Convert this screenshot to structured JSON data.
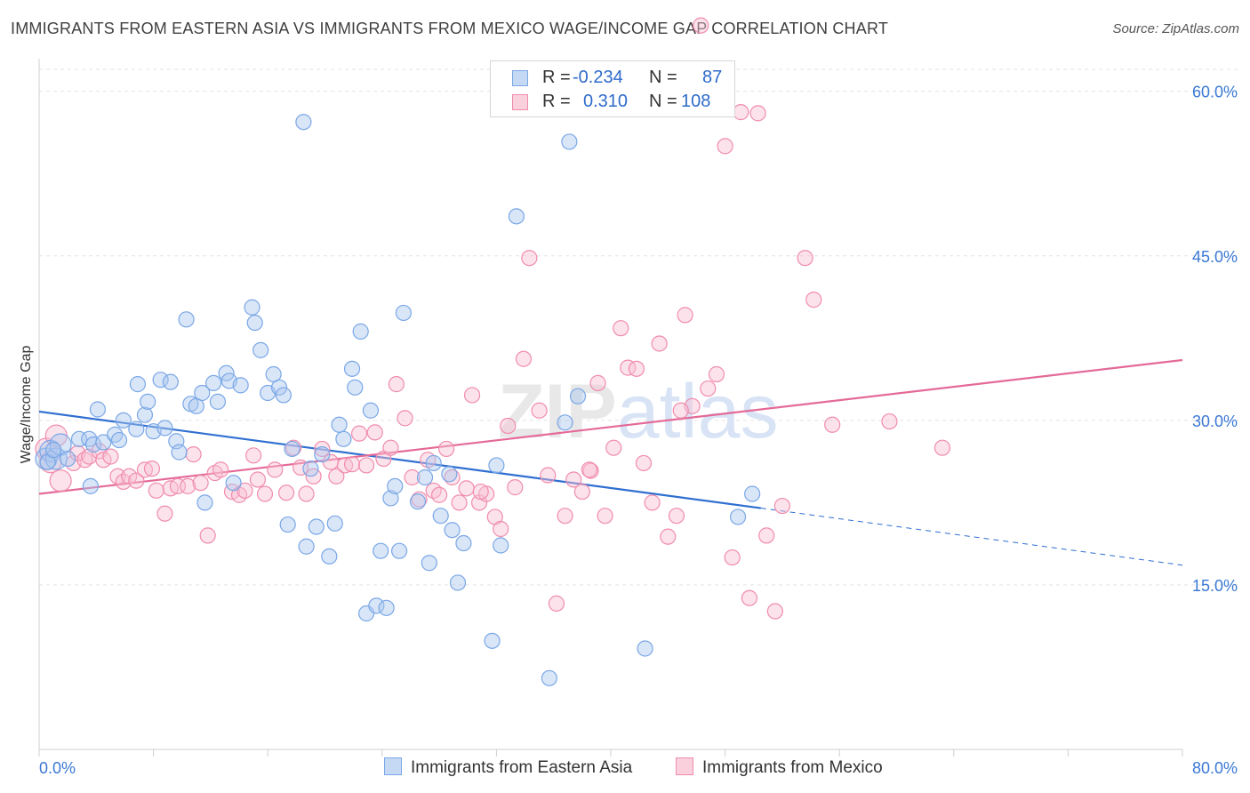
{
  "title": "IMMIGRANTS FROM EASTERN ASIA VS IMMIGRANTS FROM MEXICO WAGE/INCOME GAP CORRELATION CHART",
  "source": "Source: ZipAtlas.com",
  "watermark": "ZIPatlas",
  "legend": {
    "r_label": "R =",
    "n_label": "N =",
    "rows": [
      {
        "name": "Immigrants from Eastern Asia",
        "r": "-0.234",
        "n": "87",
        "color": "#7aa7e6",
        "fill": "#c5d9f5"
      },
      {
        "name": "Immigrants from Mexico",
        "r": "0.310",
        "n": "108",
        "color": "#f08cad",
        "fill": "#fbd0dd"
      }
    ]
  },
  "chart_data": {
    "type": "scatter",
    "title": "IMMIGRANTS FROM EASTERN ASIA VS IMMIGRANTS FROM MEXICO WAGE/INCOME GAP CORRELATION CHART",
    "xlabel": "",
    "ylabel": "Wage/Income Gap",
    "xlim": [
      0,
      80
    ],
    "ylim": [
      0,
      62
    ],
    "x_tick_labels": [
      "0.0%",
      "80.0%"
    ],
    "y_ticks": [
      15,
      30,
      45,
      60
    ],
    "y_tick_labels": [
      "15.0%",
      "30.0%",
      "45.0%",
      "60.0%"
    ],
    "grid": true,
    "legend_position": "top-center",
    "series": [
      {
        "name": "Immigrants from Eastern Asia",
        "color": "#2f6fd0",
        "trend": {
          "x0": 0,
          "y0": 30.8,
          "x1": 50.5,
          "y1": 22.0,
          "dashed_to_x": 80,
          "dashed_to_y": 16.8
        },
        "points": [
          [
            0.5,
            26.5
          ],
          [
            0.8,
            27.2
          ],
          [
            1.2,
            26.5
          ],
          [
            1.5,
            27.8
          ],
          [
            2.8,
            28.3
          ],
          [
            3.5,
            28.3
          ],
          [
            3.8,
            27.8
          ],
          [
            3.6,
            24.0
          ],
          [
            4.1,
            31.0
          ],
          [
            4.5,
            28.0
          ],
          [
            5.3,
            28.7
          ],
          [
            5.6,
            28.2
          ],
          [
            5.9,
            30.0
          ],
          [
            6.8,
            29.2
          ],
          [
            6.9,
            33.3
          ],
          [
            7.4,
            30.5
          ],
          [
            7.6,
            31.7
          ],
          [
            8.0,
            29.0
          ],
          [
            8.5,
            33.7
          ],
          [
            8.8,
            29.3
          ],
          [
            9.2,
            33.5
          ],
          [
            9.6,
            28.1
          ],
          [
            9.8,
            27.1
          ],
          [
            10.3,
            39.2
          ],
          [
            10.6,
            31.5
          ],
          [
            11.0,
            31.3
          ],
          [
            11.4,
            32.5
          ],
          [
            11.6,
            22.5
          ],
          [
            12.2,
            33.4
          ],
          [
            12.5,
            31.7
          ],
          [
            13.1,
            34.3
          ],
          [
            13.3,
            33.6
          ],
          [
            13.6,
            24.3
          ],
          [
            14.1,
            33.2
          ],
          [
            14.9,
            40.3
          ],
          [
            15.1,
            38.9
          ],
          [
            15.5,
            36.4
          ],
          [
            16.0,
            32.5
          ],
          [
            16.4,
            34.2
          ],
          [
            16.8,
            33.0
          ],
          [
            17.1,
            32.3
          ],
          [
            17.4,
            20.5
          ],
          [
            17.7,
            27.4
          ],
          [
            18.5,
            57.2
          ],
          [
            18.7,
            18.5
          ],
          [
            19.0,
            25.6
          ],
          [
            19.4,
            20.3
          ],
          [
            19.8,
            26.9
          ],
          [
            20.3,
            17.6
          ],
          [
            20.7,
            20.6
          ],
          [
            21.0,
            29.6
          ],
          [
            21.3,
            28.3
          ],
          [
            21.9,
            34.7
          ],
          [
            22.1,
            33.0
          ],
          [
            22.5,
            38.1
          ],
          [
            22.9,
            12.4
          ],
          [
            23.2,
            30.9
          ],
          [
            23.6,
            13.1
          ],
          [
            23.9,
            18.1
          ],
          [
            24.3,
            12.9
          ],
          [
            24.6,
            22.9
          ],
          [
            24.9,
            24.0
          ],
          [
            25.2,
            18.1
          ],
          [
            25.5,
            39.8
          ],
          [
            26.5,
            22.6
          ],
          [
            27.0,
            24.8
          ],
          [
            27.3,
            17.0
          ],
          [
            27.6,
            26.1
          ],
          [
            28.1,
            21.3
          ],
          [
            28.7,
            25.1
          ],
          [
            28.9,
            20.0
          ],
          [
            29.3,
            15.2
          ],
          [
            29.7,
            18.8
          ],
          [
            31.7,
            9.9
          ],
          [
            32.0,
            25.9
          ],
          [
            32.3,
            18.6
          ],
          [
            33.4,
            48.6
          ],
          [
            35.7,
            6.5
          ],
          [
            36.8,
            29.8
          ],
          [
            37.1,
            55.4
          ],
          [
            37.7,
            32.2
          ],
          [
            42.4,
            9.2
          ],
          [
            48.9,
            21.2
          ],
          [
            49.9,
            23.3
          ],
          [
            2.0,
            26.5
          ],
          [
            0.6,
            26.2
          ],
          [
            1.0,
            27.3
          ]
        ]
      },
      {
        "name": "Immigrants from Mexico",
        "color": "#e46a98",
        "trend": {
          "x0": 0,
          "y0": 23.3,
          "x1": 80,
          "y1": 35.5
        },
        "points": [
          [
            0.5,
            27.4
          ],
          [
            0.8,
            26.2
          ],
          [
            1.2,
            28.6
          ],
          [
            1.5,
            24.5
          ],
          [
            2.4,
            26.1
          ],
          [
            2.7,
            27.0
          ],
          [
            3.2,
            26.4
          ],
          [
            3.5,
            26.7
          ],
          [
            4.2,
            27.2
          ],
          [
            4.5,
            26.4
          ],
          [
            5.0,
            26.7
          ],
          [
            5.5,
            24.9
          ],
          [
            5.9,
            24.4
          ],
          [
            6.3,
            24.9
          ],
          [
            6.8,
            24.5
          ],
          [
            7.4,
            25.5
          ],
          [
            7.9,
            25.6
          ],
          [
            8.2,
            23.6
          ],
          [
            8.8,
            21.5
          ],
          [
            9.2,
            23.8
          ],
          [
            9.7,
            24.0
          ],
          [
            10.4,
            24.0
          ],
          [
            10.8,
            26.9
          ],
          [
            11.3,
            24.3
          ],
          [
            11.8,
            19.5
          ],
          [
            12.3,
            25.2
          ],
          [
            12.7,
            25.5
          ],
          [
            13.5,
            23.5
          ],
          [
            14.0,
            23.2
          ],
          [
            14.4,
            23.6
          ],
          [
            15.0,
            26.8
          ],
          [
            15.3,
            24.6
          ],
          [
            15.8,
            23.3
          ],
          [
            16.5,
            25.5
          ],
          [
            17.3,
            23.4
          ],
          [
            17.8,
            27.5
          ],
          [
            18.3,
            25.7
          ],
          [
            18.7,
            23.3
          ],
          [
            19.2,
            24.9
          ],
          [
            19.8,
            27.4
          ],
          [
            20.4,
            26.2
          ],
          [
            20.8,
            24.9
          ],
          [
            21.4,
            25.9
          ],
          [
            21.9,
            26.0
          ],
          [
            22.4,
            28.8
          ],
          [
            22.9,
            25.9
          ],
          [
            23.5,
            28.9
          ],
          [
            24.1,
            26.5
          ],
          [
            24.6,
            27.5
          ],
          [
            25.0,
            33.3
          ],
          [
            25.6,
            30.2
          ],
          [
            26.1,
            24.8
          ],
          [
            26.6,
            22.8
          ],
          [
            27.2,
            26.4
          ],
          [
            27.6,
            23.6
          ],
          [
            28.0,
            23.2
          ],
          [
            28.5,
            27.4
          ],
          [
            28.9,
            24.8
          ],
          [
            29.4,
            22.5
          ],
          [
            29.9,
            23.8
          ],
          [
            30.3,
            32.3
          ],
          [
            30.8,
            22.5
          ],
          [
            31.3,
            23.3
          ],
          [
            31.9,
            21.2
          ],
          [
            32.3,
            20.1
          ],
          [
            32.8,
            29.5
          ],
          [
            33.3,
            23.9
          ],
          [
            33.9,
            35.6
          ],
          [
            34.3,
            44.8
          ],
          [
            35.0,
            30.9
          ],
          [
            35.6,
            25.0
          ],
          [
            36.2,
            13.3
          ],
          [
            36.8,
            21.3
          ],
          [
            37.4,
            24.6
          ],
          [
            38.0,
            23.5
          ],
          [
            38.6,
            25.4
          ],
          [
            39.1,
            33.4
          ],
          [
            39.6,
            21.3
          ],
          [
            40.2,
            27.5
          ],
          [
            40.7,
            38.4
          ],
          [
            41.2,
            34.8
          ],
          [
            41.8,
            34.7
          ],
          [
            42.3,
            26.1
          ],
          [
            42.9,
            22.5
          ],
          [
            43.4,
            37.0
          ],
          [
            44.0,
            19.4
          ],
          [
            44.6,
            21.3
          ],
          [
            45.2,
            39.6
          ],
          [
            45.7,
            31.3
          ],
          [
            46.3,
            66.0
          ],
          [
            46.8,
            32.9
          ],
          [
            47.4,
            34.2
          ],
          [
            48.0,
            55.0
          ],
          [
            48.5,
            17.5
          ],
          [
            49.1,
            58.1
          ],
          [
            49.7,
            13.8
          ],
          [
            50.3,
            58.0
          ],
          [
            50.9,
            19.5
          ],
          [
            51.5,
            12.6
          ],
          [
            52.0,
            22.2
          ],
          [
            53.6,
            44.8
          ],
          [
            54.2,
            41.0
          ],
          [
            55.5,
            29.6
          ],
          [
            59.5,
            29.9
          ],
          [
            63.2,
            27.5
          ],
          [
            44.9,
            30.9
          ],
          [
            38.5,
            25.5
          ],
          [
            30.9,
            23.5
          ]
        ]
      }
    ]
  }
}
